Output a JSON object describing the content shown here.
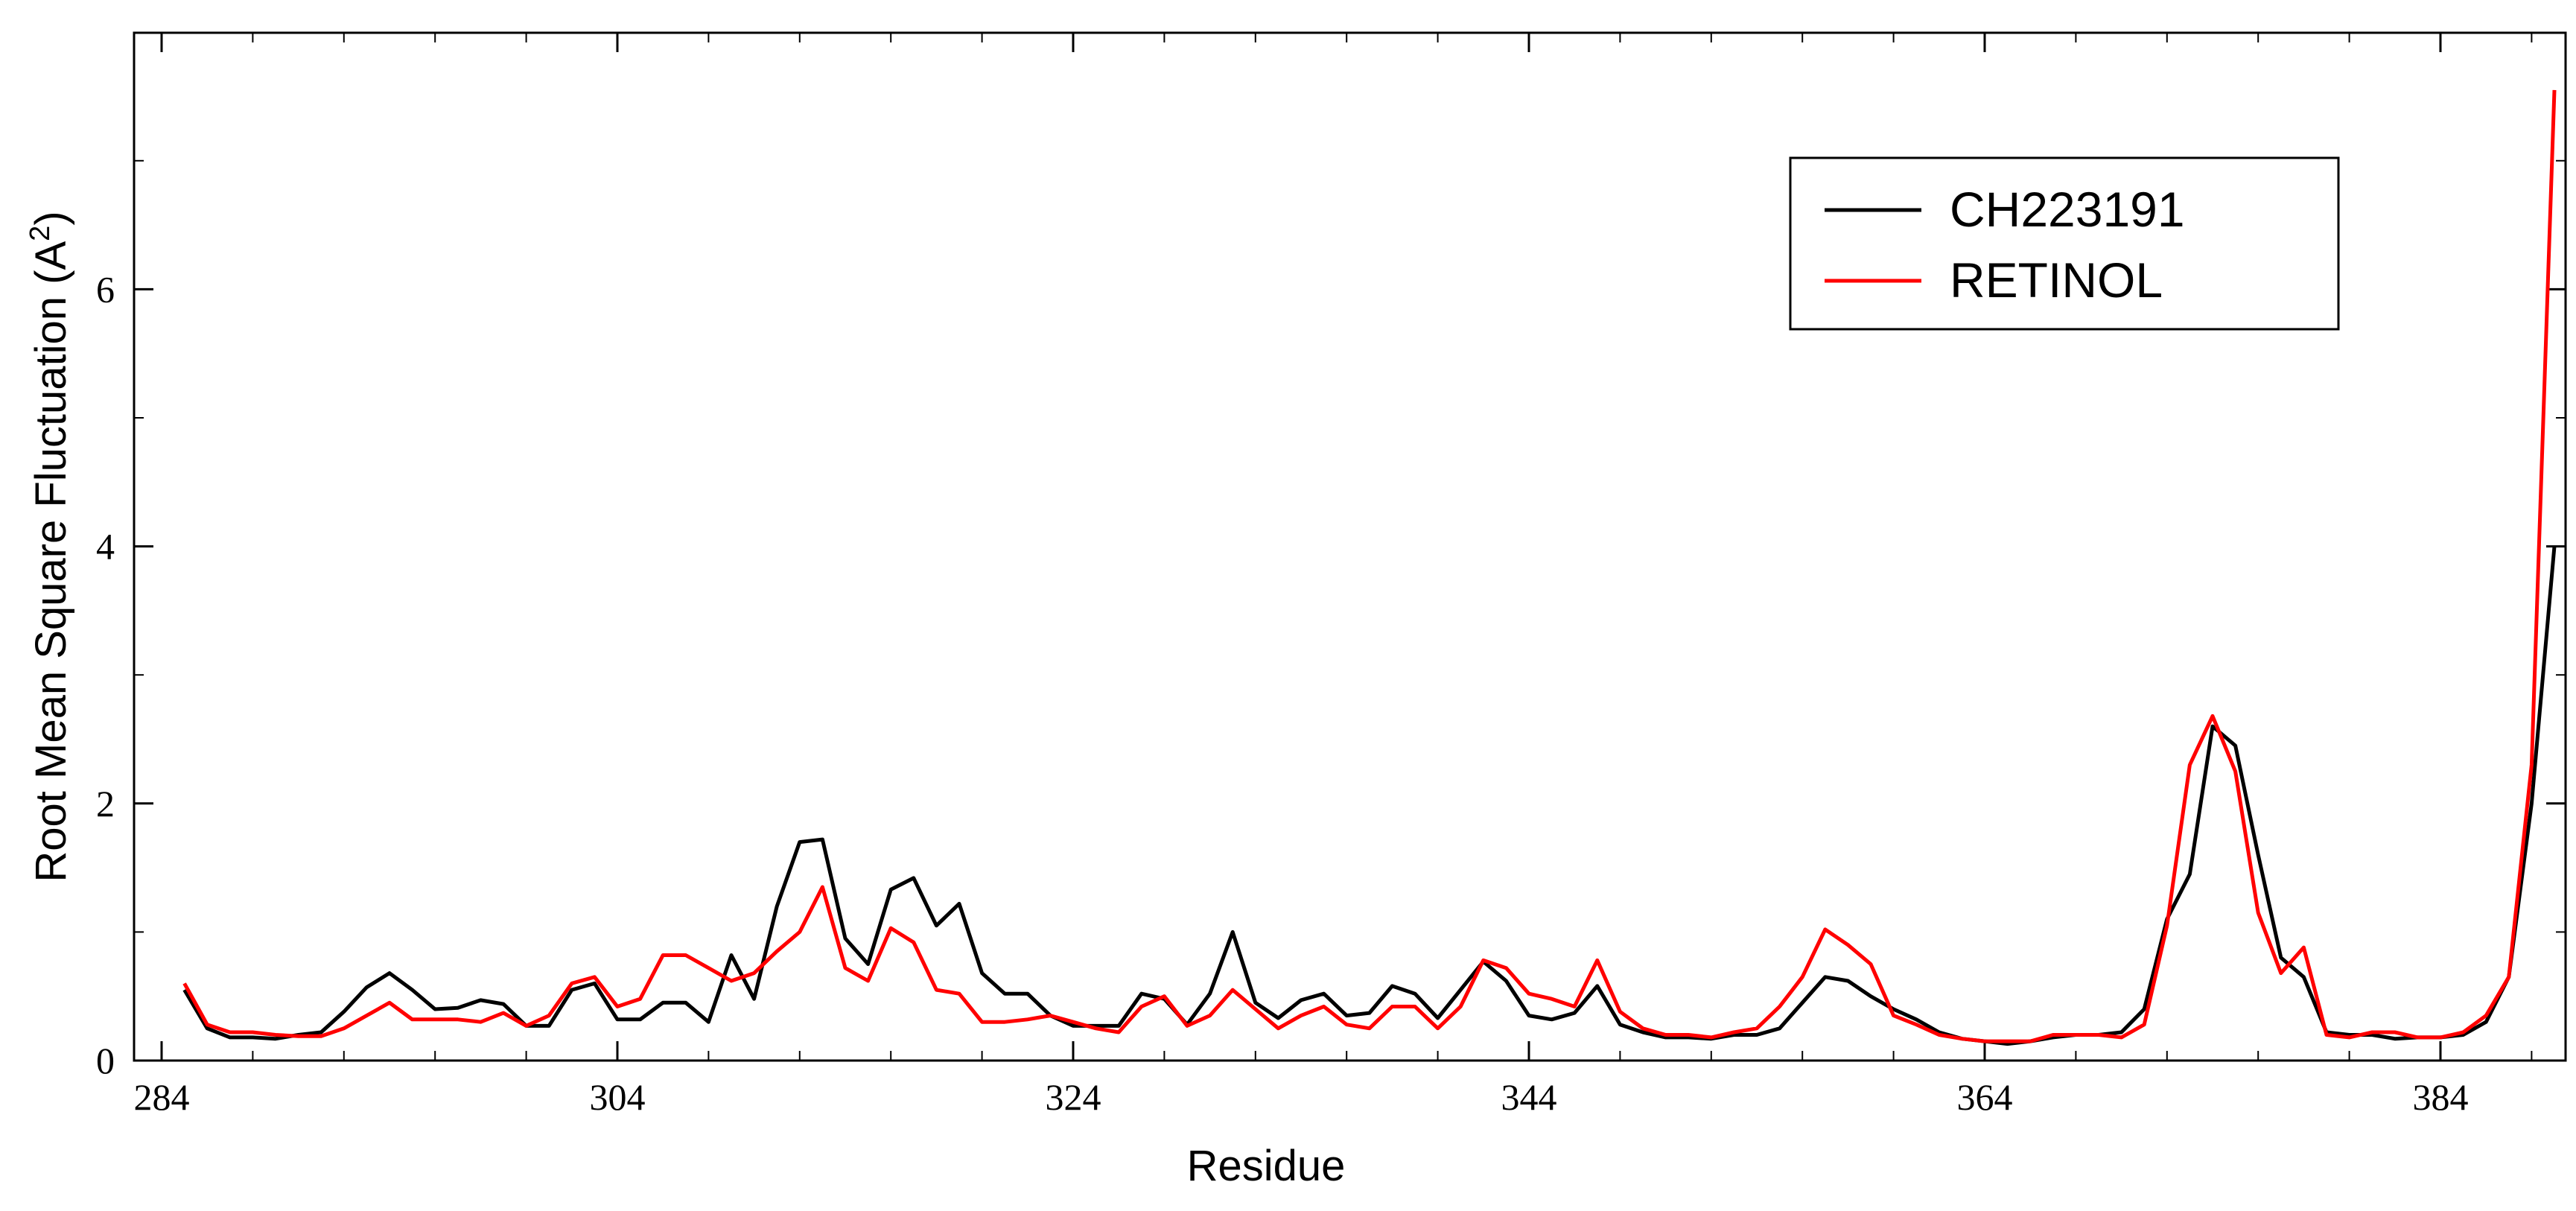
{
  "chart_data": {
    "type": "line",
    "xlabel": "Residue",
    "ylabel_main": "Root Mean Square Fluctuation (A",
    "ylabel_sup": "2",
    "ylabel_close": ")",
    "xlim": [
      284,
      391
    ],
    "ylim": [
      0,
      8
    ],
    "xticks": [
      284,
      304,
      324,
      344,
      364,
      384
    ],
    "yticks": [
      0,
      2,
      4,
      6
    ],
    "xtick_labels": [
      "284",
      "304",
      "324",
      "344",
      "364",
      "384"
    ],
    "ytick_labels": [
      "0",
      "2",
      "4",
      "6"
    ],
    "x_minor_step": 4,
    "y_minor_step": 1,
    "legend_position": "top-right",
    "grid": false,
    "x": [
      285,
      286,
      287,
      288,
      289,
      290,
      291,
      292,
      293,
      294,
      295,
      296,
      297,
      298,
      299,
      300,
      301,
      302,
      303,
      304,
      305,
      306,
      307,
      308,
      309,
      310,
      311,
      312,
      313,
      314,
      315,
      316,
      317,
      318,
      319,
      320,
      321,
      322,
      323,
      324,
      325,
      326,
      327,
      328,
      329,
      330,
      331,
      332,
      333,
      334,
      335,
      336,
      337,
      338,
      339,
      340,
      341,
      342,
      343,
      344,
      345,
      346,
      347,
      348,
      349,
      350,
      351,
      352,
      353,
      354,
      355,
      356,
      357,
      358,
      359,
      360,
      361,
      362,
      363,
      364,
      365,
      366,
      367,
      368,
      369,
      370,
      371,
      372,
      373,
      374,
      375,
      376,
      377,
      378,
      379,
      380,
      381,
      382,
      383,
      384,
      385,
      386,
      387,
      388,
      389
    ],
    "series": [
      {
        "name": "CH223191",
        "color": "#000000",
        "values": [
          0.55,
          0.25,
          0.18,
          0.18,
          0.17,
          0.2,
          0.22,
          0.38,
          0.57,
          0.68,
          0.55,
          0.4,
          0.41,
          0.47,
          0.44,
          0.27,
          0.27,
          0.55,
          0.6,
          0.32,
          0.32,
          0.45,
          0.45,
          0.3,
          0.82,
          0.48,
          1.2,
          1.7,
          1.72,
          0.95,
          0.75,
          1.33,
          1.42,
          1.05,
          1.22,
          0.68,
          0.52,
          0.52,
          0.35,
          0.27,
          0.27,
          0.27,
          0.52,
          0.48,
          0.28,
          0.52,
          1.0,
          0.45,
          0.33,
          0.47,
          0.52,
          0.35,
          0.37,
          0.58,
          0.52,
          0.33,
          0.55,
          0.77,
          0.62,
          0.35,
          0.32,
          0.37,
          0.58,
          0.28,
          0.22,
          0.18,
          0.18,
          0.17,
          0.2,
          0.2,
          0.25,
          0.45,
          0.65,
          0.62,
          0.5,
          0.4,
          0.32,
          0.22,
          0.17,
          0.15,
          0.13,
          0.15,
          0.18,
          0.2,
          0.2,
          0.22,
          0.4,
          1.1,
          1.45,
          2.6,
          2.45,
          1.6,
          0.8,
          0.65,
          0.22,
          0.2,
          0.2,
          0.17,
          0.18,
          0.18,
          0.2,
          0.3,
          0.65,
          2.0,
          4.0
        ]
      },
      {
        "name": "RETINOL",
        "color": "#ff0000",
        "values": [
          0.6,
          0.28,
          0.22,
          0.22,
          0.2,
          0.19,
          0.19,
          0.25,
          0.35,
          0.45,
          0.32,
          0.32,
          0.32,
          0.3,
          0.37,
          0.27,
          0.35,
          0.6,
          0.65,
          0.42,
          0.48,
          0.82,
          0.82,
          0.72,
          0.62,
          0.68,
          0.85,
          1.0,
          1.35,
          0.72,
          0.62,
          1.03,
          0.92,
          0.55,
          0.52,
          0.3,
          0.3,
          0.32,
          0.35,
          0.3,
          0.25,
          0.22,
          0.42,
          0.5,
          0.27,
          0.35,
          0.55,
          0.4,
          0.25,
          0.35,
          0.42,
          0.28,
          0.25,
          0.42,
          0.42,
          0.25,
          0.42,
          0.78,
          0.72,
          0.52,
          0.48,
          0.42,
          0.78,
          0.38,
          0.25,
          0.2,
          0.2,
          0.18,
          0.22,
          0.25,
          0.42,
          0.65,
          1.02,
          0.9,
          0.75,
          0.35,
          0.28,
          0.2,
          0.17,
          0.15,
          0.15,
          0.15,
          0.2,
          0.2,
          0.2,
          0.18,
          0.28,
          1.05,
          2.3,
          2.68,
          2.25,
          1.15,
          0.68,
          0.88,
          0.2,
          0.18,
          0.22,
          0.22,
          0.18,
          0.18,
          0.22,
          0.35,
          0.65,
          2.3,
          7.55
        ]
      }
    ]
  }
}
